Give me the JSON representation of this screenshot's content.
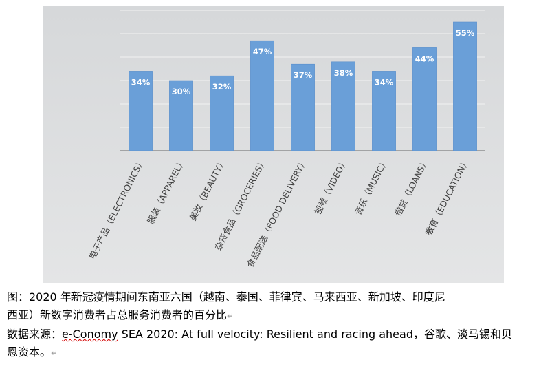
{
  "chart_data": {
    "type": "bar",
    "categories": [
      "电子产品（ELECTRONICS）",
      "服装（APPAREL）",
      "美妆（BEAUTY）",
      "杂货食品（GROCERIES）",
      "食品配送（FOOD DELIVERY）",
      "视频（VIDEO）",
      "音乐（MUSIC）",
      "借贷（LOANS）",
      "教育（EDUCATION）"
    ],
    "values": [
      34,
      30,
      32,
      47,
      37,
      38,
      34,
      44,
      55
    ],
    "data_labels": [
      "34%",
      "30%",
      "32%",
      "47%",
      "37%",
      "38%",
      "34%",
      "44%",
      "55%"
    ],
    "ylim": [
      0,
      60
    ],
    "grid": true,
    "colors": {
      "bar": "#6a9fd8",
      "bar_edge": "#5b8fcb",
      "panel_bg": "#d6d8da",
      "gridline": "#f2f2f2"
    }
  },
  "caption": {
    "line1": "图：2020 年新冠疫情期间东南亚六国（越南、泰国、菲律宾、马来西亚、新加坡、印度尼",
    "line2": "西亚）新数字消费者占总服务消费者的百分比",
    "source_prefix": "数据来源：",
    "source_underlined": "e-Conomy",
    "source_rest": " SEA 2020: At full velocity: Resilient and racing ahead，谷歌、淡马锡和贝",
    "source_line2": "恩资本。",
    "para_mark": "↵"
  }
}
